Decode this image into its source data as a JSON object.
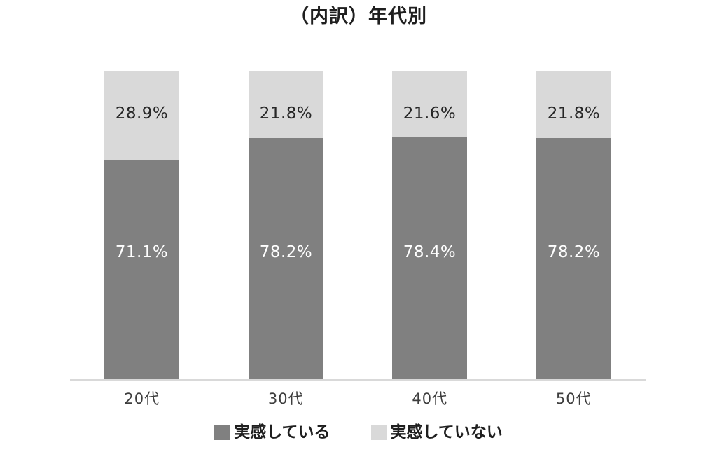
{
  "title": "（内訳）年代別",
  "chart_data": {
    "type": "bar",
    "subtype": "stacked-100-percent-column",
    "categories": [
      "20代",
      "30代",
      "40代",
      "50代"
    ],
    "series": [
      {
        "name": "実感している",
        "color": "#808080",
        "label_color": "#ffffff",
        "values": [
          71.1,
          78.2,
          78.4,
          78.2
        ],
        "display_labels": [
          "71.1%",
          "78.2%",
          "78.4%",
          "78.2%"
        ]
      },
      {
        "name": "実感していない",
        "color": "#d9d9d9",
        "label_color": "#262626",
        "values": [
          28.9,
          21.8,
          21.6,
          21.8
        ],
        "display_labels": [
          "28.9%",
          "21.8%",
          "21.6%",
          "21.8%"
        ]
      }
    ],
    "ylim": [
      0,
      100
    ],
    "grid": false,
    "legend_position": "bottom",
    "axis_line_color": "#d9d9d9"
  }
}
